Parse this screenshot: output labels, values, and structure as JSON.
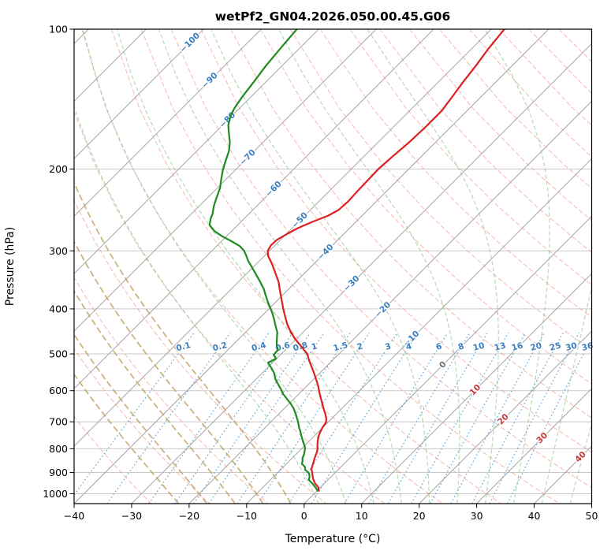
{
  "title": "wetPf2_GN04.2026.050.00.45.G06",
  "chart_data": {
    "type": "line",
    "variant": "skew-t-log-p",
    "x_axis": {
      "label": "Temperature (°C)",
      "ticks": [
        -40,
        -30,
        -20,
        -10,
        0,
        10,
        20,
        30,
        40,
        50
      ],
      "range": [
        -40,
        50
      ],
      "skew_deg": 45
    },
    "y_axis": {
      "label": "Pressure (hPa)",
      "ticks": [
        100,
        200,
        300,
        400,
        500,
        600,
        700,
        800,
        900,
        1000
      ],
      "range": [
        100,
        1050
      ],
      "scale": "log"
    },
    "series": [
      {
        "name": "temperature",
        "color": "#dc1f1f",
        "width": 2.2,
        "points": [
          [
            985,
            0.3
          ],
          [
            968,
            -0.4
          ],
          [
            950,
            -1.6
          ],
          [
            930,
            -2.7
          ],
          [
            912,
            -3.5
          ],
          [
            900,
            -4.0
          ],
          [
            886,
            -4.7
          ],
          [
            872,
            -5.1
          ],
          [
            858,
            -5.5
          ],
          [
            845,
            -5.9
          ],
          [
            830,
            -6.3
          ],
          [
            815,
            -6.7
          ],
          [
            800,
            -7.2
          ],
          [
            785,
            -7.9
          ],
          [
            768,
            -8.6
          ],
          [
            752,
            -9.2
          ],
          [
            738,
            -9.6
          ],
          [
            722,
            -10.0
          ],
          [
            710,
            -10.2
          ],
          [
            700,
            -10.4
          ],
          [
            688,
            -11.0
          ],
          [
            672,
            -12.0
          ],
          [
            655,
            -13.2
          ],
          [
            640,
            -14.2
          ],
          [
            622,
            -15.5
          ],
          [
            605,
            -16.7
          ],
          [
            588,
            -17.9
          ],
          [
            570,
            -19.3
          ],
          [
            552,
            -20.8
          ],
          [
            535,
            -22.3
          ],
          [
            518,
            -23.9
          ],
          [
            500,
            -25.5
          ],
          [
            482,
            -27.8
          ],
          [
            465,
            -30.1
          ],
          [
            450,
            -32.0
          ],
          [
            432,
            -34.1
          ],
          [
            415,
            -35.9
          ],
          [
            400,
            -37.5
          ],
          [
            382,
            -39.4
          ],
          [
            365,
            -41.3
          ],
          [
            350,
            -43.0
          ],
          [
            335,
            -45.1
          ],
          [
            320,
            -47.3
          ],
          [
            308,
            -49.3
          ],
          [
            300,
            -50.3
          ],
          [
            292,
            -50.7
          ],
          [
            284,
            -50.6
          ],
          [
            276,
            -49.9
          ],
          [
            268,
            -49.0
          ],
          [
            260,
            -47.6
          ],
          [
            252,
            -45.9
          ],
          [
            245,
            -45.1
          ],
          [
            235,
            -44.9
          ],
          [
            222,
            -45.1
          ],
          [
            210,
            -45.2
          ],
          [
            200,
            -45.3
          ],
          [
            188,
            -45.0
          ],
          [
            175,
            -44.6
          ],
          [
            162,
            -44.4
          ],
          [
            150,
            -44.4
          ],
          [
            140,
            -45.0
          ],
          [
            130,
            -45.7
          ],
          [
            120,
            -46.3
          ],
          [
            110,
            -47.1
          ],
          [
            100,
            -47.7
          ]
        ]
      },
      {
        "name": "dewpoint",
        "color": "#1f8a1f",
        "width": 2.2,
        "points": [
          [
            985,
            0.1
          ],
          [
            968,
            -0.9
          ],
          [
            950,
            -2.1
          ],
          [
            934,
            -3.3
          ],
          [
            920,
            -3.7
          ],
          [
            908,
            -4.2
          ],
          [
            900,
            -4.7
          ],
          [
            888,
            -5.7
          ],
          [
            876,
            -6.2
          ],
          [
            862,
            -7.3
          ],
          [
            850,
            -7.7
          ],
          [
            838,
            -8.2
          ],
          [
            822,
            -8.6
          ],
          [
            808,
            -9.1
          ],
          [
            795,
            -9.6
          ],
          [
            780,
            -10.5
          ],
          [
            765,
            -11.4
          ],
          [
            750,
            -12.3
          ],
          [
            736,
            -13.1
          ],
          [
            722,
            -14.0
          ],
          [
            710,
            -14.7
          ],
          [
            700,
            -15.3
          ],
          [
            686,
            -16.2
          ],
          [
            670,
            -17.3
          ],
          [
            655,
            -18.4
          ],
          [
            640,
            -19.7
          ],
          [
            625,
            -21.2
          ],
          [
            610,
            -22.7
          ],
          [
            596,
            -23.9
          ],
          [
            582,
            -25.2
          ],
          [
            566,
            -26.7
          ],
          [
            550,
            -27.9
          ],
          [
            536,
            -29.3
          ],
          [
            522,
            -30.8
          ],
          [
            512,
            -30.1
          ],
          [
            502,
            -31.2
          ],
          [
            490,
            -31.3
          ],
          [
            478,
            -32.4
          ],
          [
            464,
            -33.4
          ],
          [
            450,
            -34.4
          ],
          [
            436,
            -35.8
          ],
          [
            422,
            -37.2
          ],
          [
            410,
            -38.5
          ],
          [
            400,
            -39.7
          ],
          [
            388,
            -41.2
          ],
          [
            375,
            -42.8
          ],
          [
            362,
            -44.4
          ],
          [
            350,
            -46.2
          ],
          [
            338,
            -48.1
          ],
          [
            326,
            -50.1
          ],
          [
            315,
            -52.0
          ],
          [
            306,
            -53.4
          ],
          [
            300,
            -54.4
          ],
          [
            293,
            -56.0
          ],
          [
            286,
            -58.3
          ],
          [
            279,
            -60.8
          ],
          [
            272,
            -63.0
          ],
          [
            264,
            -64.9
          ],
          [
            256,
            -65.8
          ],
          [
            250,
            -66.3
          ],
          [
            240,
            -67.5
          ],
          [
            230,
            -68.5
          ],
          [
            220,
            -69.5
          ],
          [
            210,
            -70.9
          ],
          [
            200,
            -72.3
          ],
          [
            191,
            -73.4
          ],
          [
            183,
            -74.4
          ],
          [
            175,
            -75.8
          ],
          [
            168,
            -77.4
          ],
          [
            161,
            -79.0
          ],
          [
            154,
            -80.2
          ],
          [
            148,
            -80.9
          ],
          [
            140,
            -81.5
          ],
          [
            130,
            -82.1
          ],
          [
            120,
            -82.8
          ],
          [
            110,
            -83.3
          ],
          [
            100,
            -83.8
          ]
        ]
      }
    ],
    "background_lines": {
      "isobars": {
        "values": [
          100,
          200,
          300,
          400,
          500,
          600,
          700,
          800,
          900,
          1000
        ],
        "color": "#c9c9c9"
      },
      "isotherms": {
        "from": -120,
        "to": 50,
        "step": 10,
        "color": "#a3a3a3",
        "labels": [
          {
            "value": -100,
            "p": 107
          },
          {
            "value": -90,
            "p": 129
          },
          {
            "value": -80,
            "p": 157
          },
          {
            "value": -70,
            "p": 189
          },
          {
            "value": -60,
            "p": 221
          },
          {
            "value": -50,
            "p": 258
          },
          {
            "value": -40,
            "p": 302
          },
          {
            "value": -30,
            "p": 353
          },
          {
            "value": -20,
            "p": 402
          },
          {
            "value": -10,
            "p": 464
          },
          {
            "value": 0,
            "p": 528
          },
          {
            "value": 10,
            "p": 598
          },
          {
            "value": 20,
            "p": 692
          },
          {
            "value": 30,
            "p": 759
          },
          {
            "value": 40,
            "p": 834
          }
        ],
        "label_colors": {
          "negative": "#3a7ebf",
          "zero": "#6e6e6e",
          "positive": "#c03a3a"
        }
      },
      "dry_adiabats": {
        "from": -30,
        "to": 210,
        "step": 10,
        "color": "#f08878"
      },
      "moist_adiabats": {
        "warm": {
          "from": 0,
          "to": 55,
          "step": 5,
          "color": "#86c086"
        },
        "cold": {
          "from": -25,
          "to": -5,
          "step": 5,
          "color": "#c0a060"
        }
      },
      "mixing_ratio": {
        "values": [
          0.1,
          0.2,
          0.4,
          0.6,
          0.8,
          1,
          1.5,
          2,
          3,
          4,
          6,
          8,
          10,
          13,
          16,
          20,
          25,
          30,
          36
        ],
        "color": "#4f94cd",
        "label_color": "#3a7ebf",
        "label_pressure": 483
      }
    }
  }
}
